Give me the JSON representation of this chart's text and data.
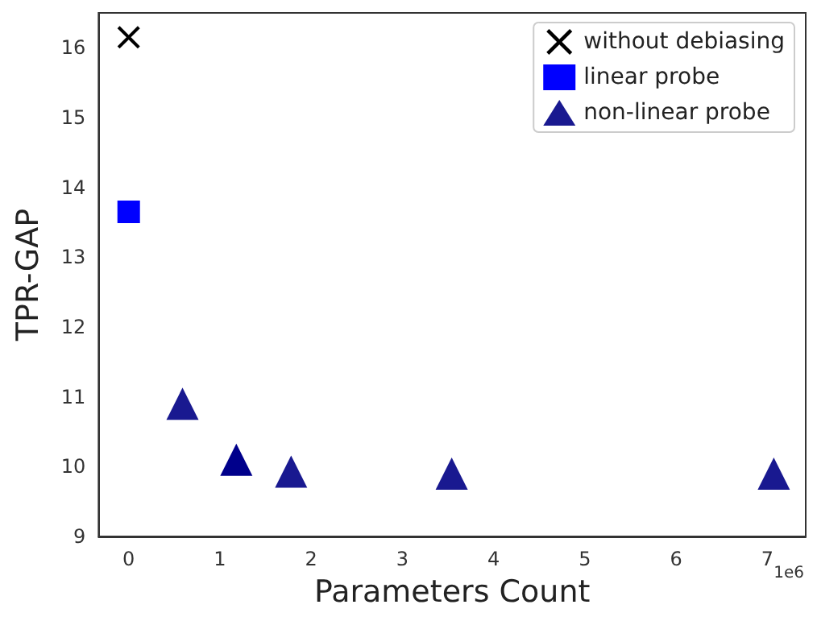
{
  "chart_data": {
    "type": "scatter",
    "xlabel": "Parameters Count",
    "ylabel": "TPR-GAP",
    "series": [
      {
        "name": "without debiasing",
        "color": "#000000",
        "marker": "cross",
        "x": [
          0
        ],
        "values": [
          16.15
        ]
      },
      {
        "name": "linear probe",
        "color": "#0000ff",
        "marker": "square",
        "x": [
          0
        ],
        "values": [
          13.65
        ]
      },
      {
        "name": "non-linear probe",
        "color": "#191990",
        "marker": "triangle",
        "x": [
          0.59,
          1.18,
          1.78,
          3.54,
          7.07
        ],
        "values": [
          10.9,
          10.1,
          9.93,
          9.9,
          9.9
        ],
        "colors": [
          "#191990",
          "#00008b",
          "#191990",
          "#191990",
          "#191990"
        ]
      }
    ],
    "xlim": [
      -0.33,
      7.42
    ],
    "xticks": [
      0,
      1,
      2,
      3,
      4,
      5,
      6,
      7
    ],
    "ylim": [
      9,
      16.5
    ],
    "yticks": [
      9,
      10,
      11,
      12,
      13,
      14,
      15,
      16
    ],
    "annotations": [
      "1e6"
    ],
    "grid": false,
    "legend": "top right"
  }
}
